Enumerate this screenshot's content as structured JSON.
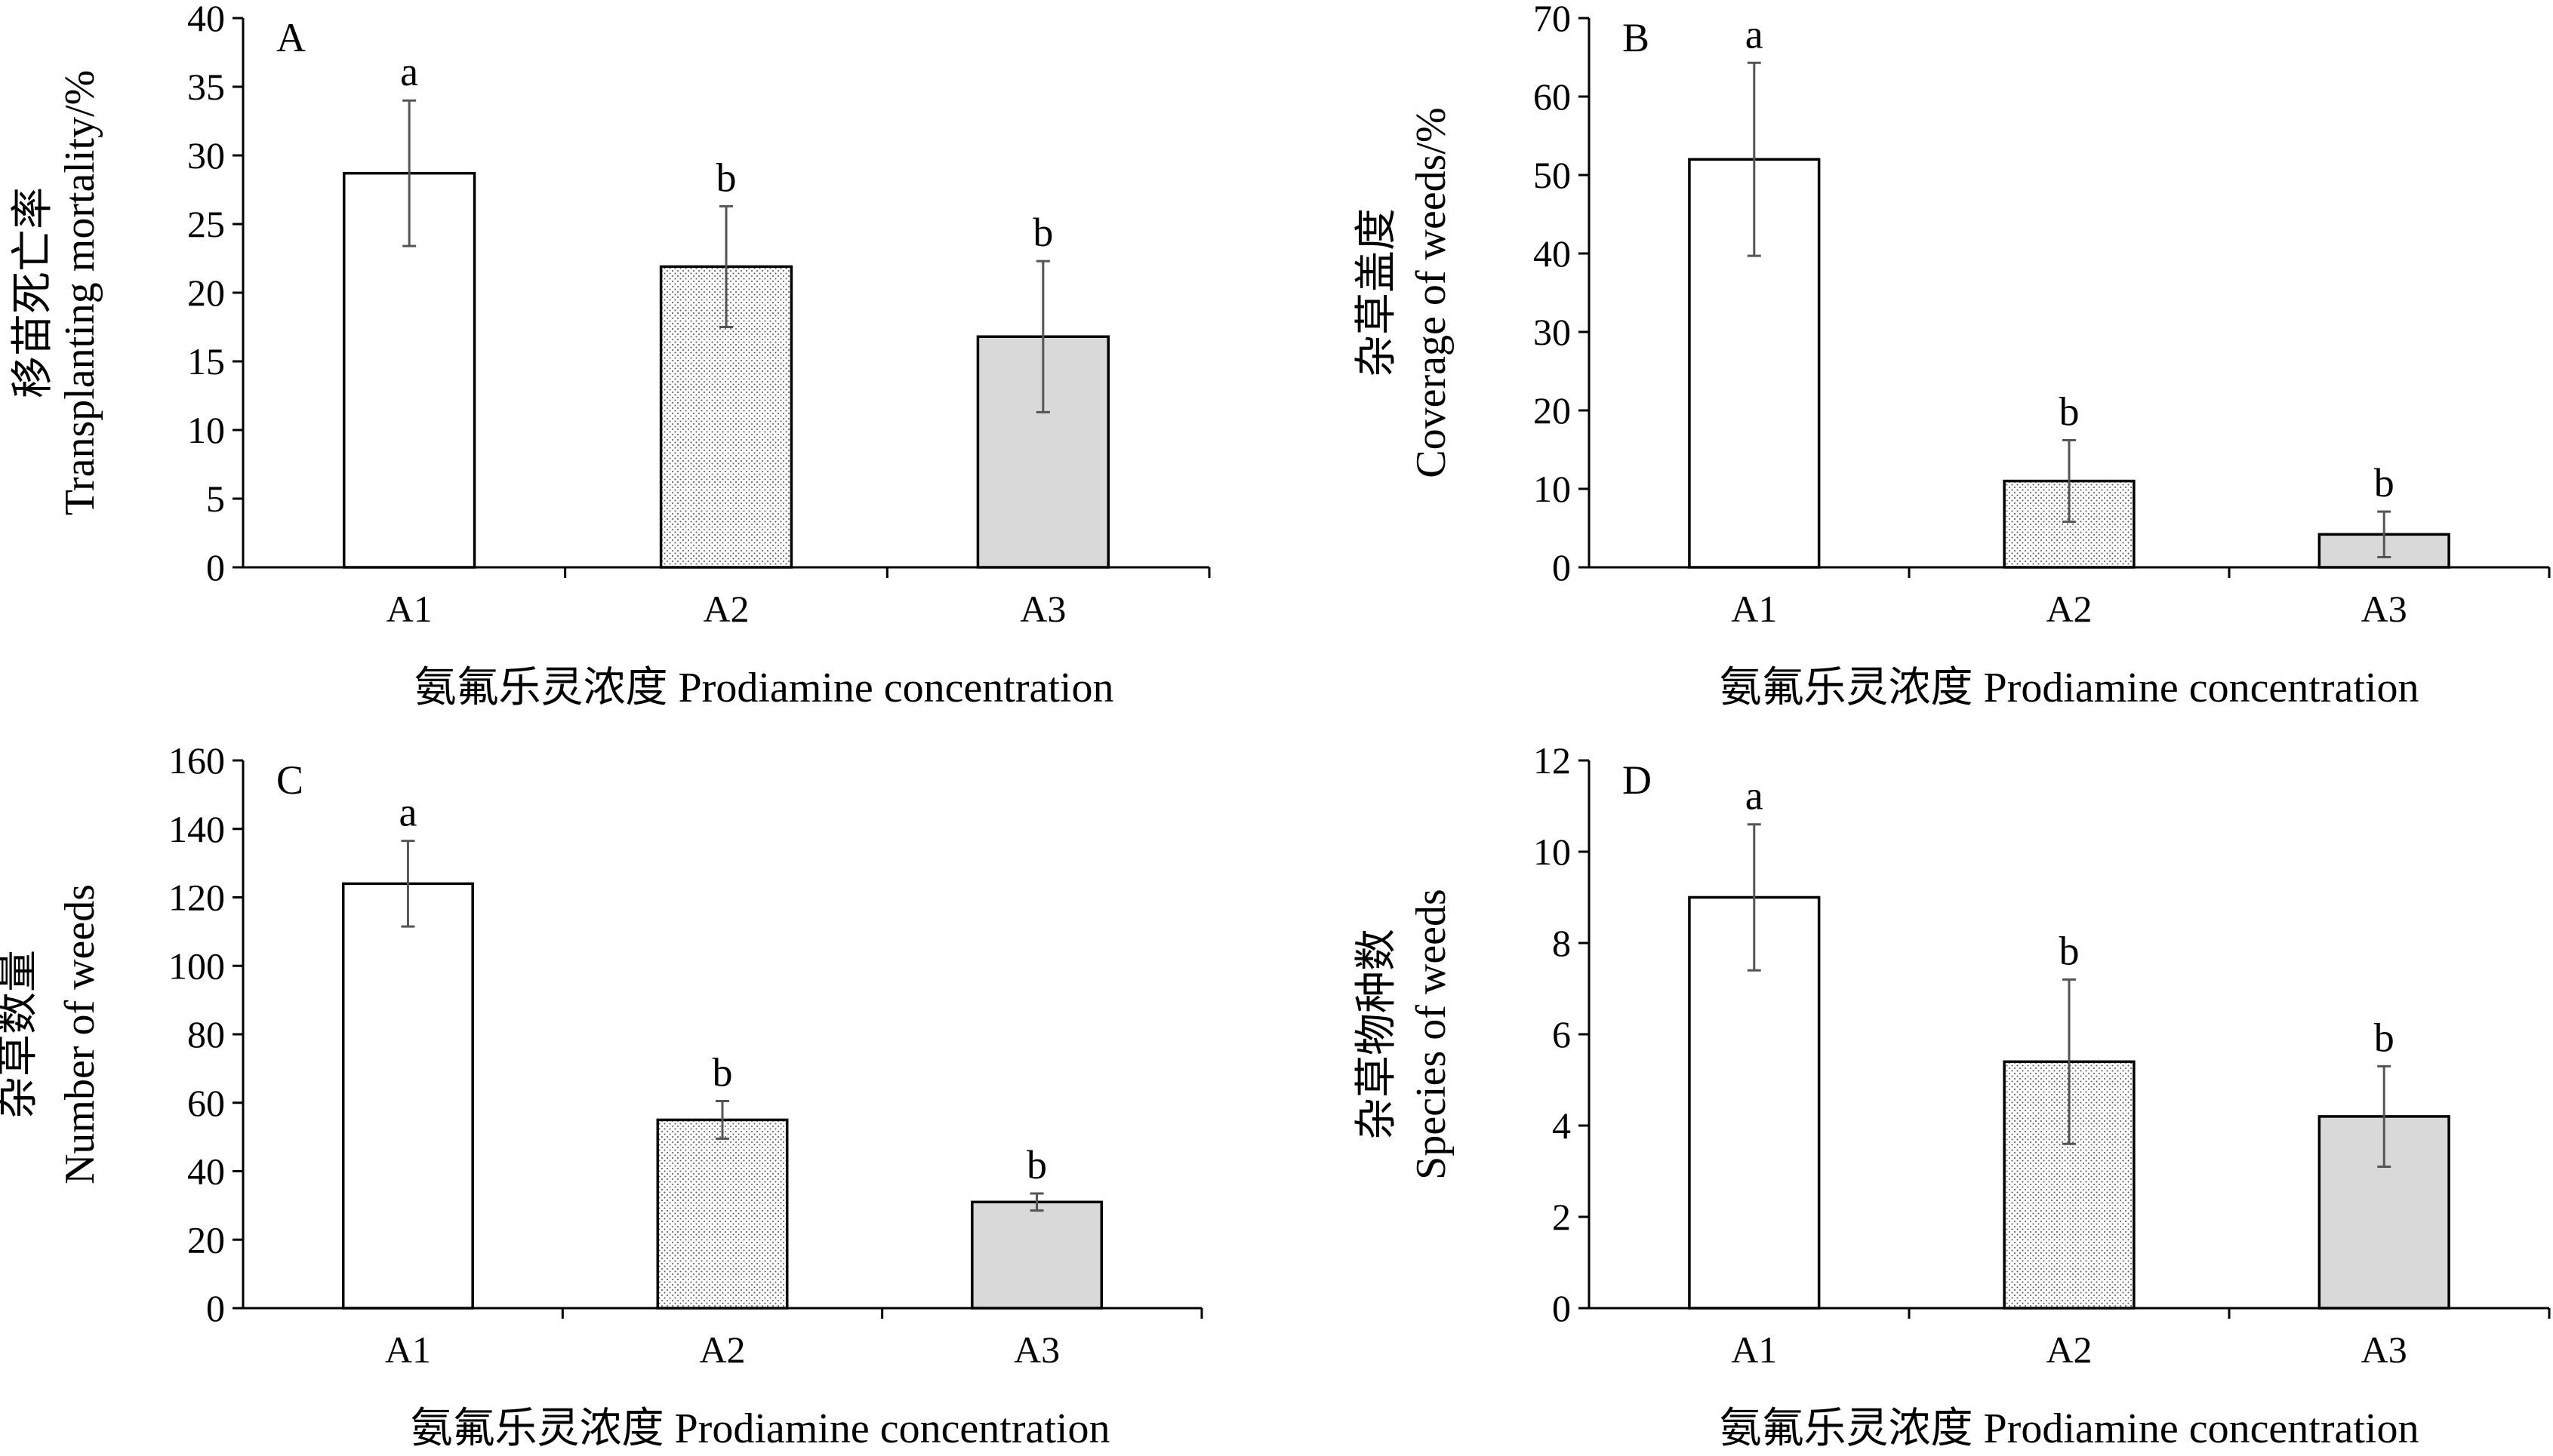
{
  "chart_data": [
    {
      "type": "bar",
      "panel": "A",
      "categories": [
        "A1",
        "A2",
        "A3"
      ],
      "values": [
        28.7,
        21.9,
        16.8
      ],
      "errors": [
        5.3,
        4.4,
        5.5
      ],
      "significance": [
        "a",
        "b",
        "b"
      ],
      "fills": [
        "white",
        "dots",
        "gray"
      ],
      "xlabel": "氨氟乐灵浓度 Prodiamine concentration",
      "ylabel_cn": "移苗死亡率",
      "ylabel_en": "Transplanting mortality/%",
      "ylim": [
        0,
        40
      ],
      "yticks": [
        0,
        5,
        10,
        15,
        20,
        25,
        30,
        35,
        40
      ]
    },
    {
      "type": "bar",
      "panel": "B",
      "categories": [
        "A1",
        "A2",
        "A3"
      ],
      "values": [
        52,
        11,
        4.2
      ],
      "errors": [
        12.3,
        5.2,
        2.9
      ],
      "significance": [
        "a",
        "b",
        "b"
      ],
      "fills": [
        "white",
        "dots",
        "gray"
      ],
      "xlabel": "氨氟乐灵浓度 Prodiamine concentration",
      "ylabel_cn": "杂草盖度",
      "ylabel_en": "Coverage of weeds/%",
      "ylim": [
        0,
        70
      ],
      "yticks": [
        0,
        10,
        20,
        30,
        40,
        50,
        60,
        70
      ]
    },
    {
      "type": "bar",
      "panel": "C",
      "categories": [
        "A1",
        "A2",
        "A3"
      ],
      "values": [
        124,
        55,
        31
      ],
      "errors": [
        12.5,
        5.5,
        2.5
      ],
      "significance": [
        "a",
        "b",
        "b"
      ],
      "fills": [
        "white",
        "dots",
        "gray"
      ],
      "xlabel": "氨氟乐灵浓度 Prodiamine concentration",
      "ylabel_cn": "杂草数量",
      "ylabel_en": "Number of weeds",
      "ylim": [
        0,
        160
      ],
      "yticks": [
        0,
        20,
        40,
        60,
        80,
        100,
        120,
        140,
        160
      ]
    },
    {
      "type": "bar",
      "panel": "D",
      "categories": [
        "A1",
        "A2",
        "A3"
      ],
      "values": [
        9.0,
        5.4,
        4.2
      ],
      "errors": [
        1.6,
        1.8,
        1.1
      ],
      "significance": [
        "a",
        "b",
        "b"
      ],
      "fills": [
        "white",
        "dots",
        "gray"
      ],
      "xlabel": "氨氟乐灵浓度 Prodiamine concentration",
      "ylabel_cn": "杂草物种数",
      "ylabel_en": "Species of weeds",
      "ylim": [
        0,
        12
      ],
      "yticks": [
        0,
        2,
        4,
        6,
        8,
        10,
        12
      ]
    }
  ],
  "colors": {
    "white_bar": "#ffffff",
    "gray_bar": "#d9d9d9",
    "dot_color": "#555555",
    "axis": "#000000",
    "error_bar": "#555555"
  }
}
